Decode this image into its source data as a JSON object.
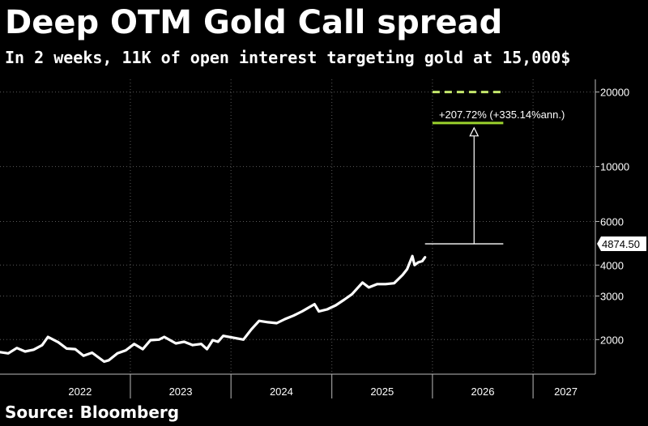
{
  "title": "Deep OTM Gold Call spread",
  "subtitle": "In 2 weeks, 11K of open interest targeting gold at 15,000$",
  "source": "Source: Bloomberg",
  "chart_data": {
    "type": "line",
    "title": "Deep OTM Gold Call spread",
    "xlabel": "",
    "ylabel": "",
    "y_scale": "log",
    "ylim": [
      1450,
      22500
    ],
    "xlim": [
      "2021-09-15",
      "2027-08-15"
    ],
    "grid": true,
    "legend": "none",
    "x_tick_labels": [
      "2022",
      "2023",
      "2024",
      "2025",
      "2026",
      "2027"
    ],
    "y_tick_labels": [
      "2000",
      "3000",
      "4000",
      "6000",
      "10000",
      "20000"
    ],
    "y_ticks": [
      2000,
      3000,
      4000,
      6000,
      10000,
      20000
    ],
    "series": [
      {
        "color": "#ffffff",
        "x": [
          "2021-09-15",
          "2021-10-15",
          "2021-11-15",
          "2021-12-15",
          "2022-01-15",
          "2022-02-15",
          "2022-03-08",
          "2022-04-15",
          "2022-05-15",
          "2022-06-15",
          "2022-07-15",
          "2022-08-15",
          "2022-09-28",
          "2022-10-15",
          "2022-11-15",
          "2022-12-15",
          "2023-01-15",
          "2023-02-15",
          "2023-03-15",
          "2023-04-15",
          "2023-05-04",
          "2023-06-15",
          "2023-07-15",
          "2023-08-15",
          "2023-09-15",
          "2023-10-06",
          "2023-10-27",
          "2023-11-15",
          "2023-12-04",
          "2024-01-15",
          "2024-02-15",
          "2024-03-15",
          "2024-04-12",
          "2024-05-15",
          "2024-06-15",
          "2024-07-15",
          "2024-08-15",
          "2024-09-15",
          "2024-10-30",
          "2024-11-15",
          "2024-12-15",
          "2025-01-15",
          "2025-02-15",
          "2025-03-15",
          "2025-04-22",
          "2025-05-15",
          "2025-06-15",
          "2025-07-15",
          "2025-08-15",
          "2025-09-15",
          "2025-10-01",
          "2025-10-20",
          "2025-10-28",
          "2025-11-10",
          "2025-11-25",
          "2025-12-05"
        ],
        "y": [
          1780,
          1760,
          1850,
          1790,
          1820,
          1900,
          2050,
          1950,
          1840,
          1830,
          1720,
          1770,
          1630,
          1650,
          1760,
          1810,
          1920,
          1830,
          1990,
          2000,
          2050,
          1930,
          1960,
          1900,
          1920,
          1830,
          1990,
          1960,
          2070,
          2030,
          2000,
          2200,
          2380,
          2350,
          2330,
          2420,
          2500,
          2600,
          2780,
          2600,
          2650,
          2750,
          2900,
          3050,
          3400,
          3250,
          3350,
          3350,
          3380,
          3650,
          3850,
          4350,
          4000,
          4100,
          4150,
          4300
        ]
      }
    ],
    "annotations": [
      {
        "type": "horizontal_line",
        "y": 4874.5,
        "x_start": "2025-12-05",
        "x_end": "2026-09-15",
        "color": "#ffffff",
        "label": "4874.50"
      },
      {
        "type": "horizontal_line",
        "y": 15000,
        "x_start": "2026-01-01",
        "x_end": "2026-09-15",
        "color": "#9bd22d",
        "label": "+207.72% (+335.14%ann.)"
      },
      {
        "type": "dashed_line",
        "y": 20000,
        "x_start": "2026-01-01",
        "x_end": "2026-09-15",
        "color": "#c5e86c"
      },
      {
        "type": "arrow",
        "x": "2026-06-01",
        "y_from": 4874.5,
        "y_to": 15000,
        "color": "#ffffff"
      }
    ]
  }
}
